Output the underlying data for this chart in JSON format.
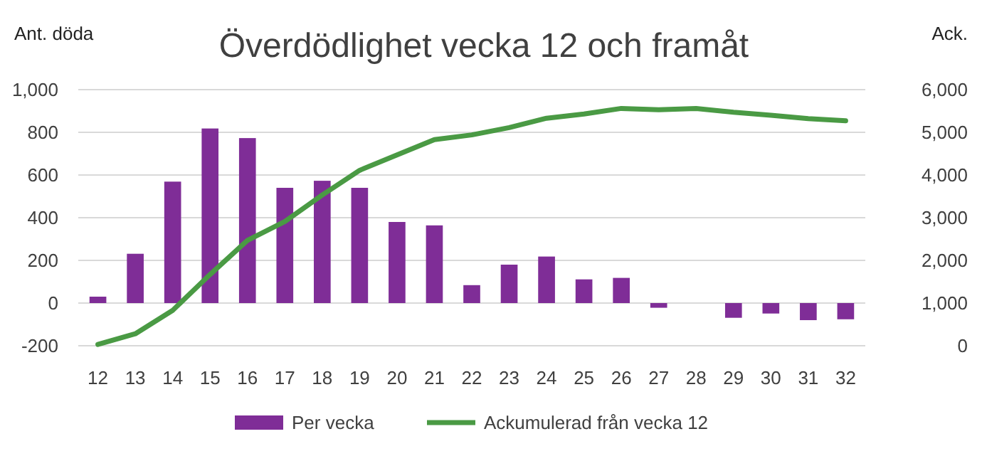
{
  "chart_data": {
    "type": "bar",
    "title": "Överdödlighet vecka 12 och framåt",
    "ylabel": "Ant. döda",
    "y2label": "Ack.",
    "categories": [
      "12",
      "13",
      "14",
      "15",
      "16",
      "17",
      "18",
      "19",
      "20",
      "21",
      "22",
      "23",
      "24",
      "25",
      "26",
      "27",
      "28",
      "29",
      "30",
      "31",
      "32"
    ],
    "series": [
      {
        "name": "Per vecka",
        "color": "#7f2d97",
        "values": [
          30,
          231,
          569,
          818,
          773,
          540,
          573,
          540,
          380,
          364,
          84,
          180,
          218,
          111,
          118,
          -22,
          0,
          -69,
          -49,
          -80,
          -76
        ]
      },
      {
        "name": "Ackumulerad från vecka 12",
        "type": "line",
        "axis": "y2",
        "color": "#4a9a44",
        "values": [
          30,
          280,
          830,
          1670,
          2470,
          2910,
          3530,
          4110,
          4470,
          4830,
          4940,
          5110,
          5330,
          5430,
          5560,
          5530,
          5560,
          5470,
          5400,
          5320,
          5270
        ]
      }
    ],
    "ylim": [
      -200,
      1000
    ],
    "yticks": [
      {
        "value": -200,
        "label": "-200"
      },
      0,
      200,
      400,
      600,
      800,
      {
        "value": 1000,
        "label": "1,000"
      }
    ],
    "y2lim": [
      0,
      6000
    ],
    "y2ticks": [
      0,
      {
        "value": 1000,
        "label": "1,000"
      },
      {
        "value": 2000,
        "label": "2,000"
      },
      {
        "value": 3000,
        "label": "3,000"
      },
      {
        "value": 4000,
        "label": "4,000"
      },
      {
        "value": 5000,
        "label": "5,000"
      },
      {
        "value": 6000,
        "label": "6,000"
      }
    ],
    "grid": "y",
    "legend": "bottom",
    "line_style": "solid",
    "marker": "none"
  }
}
